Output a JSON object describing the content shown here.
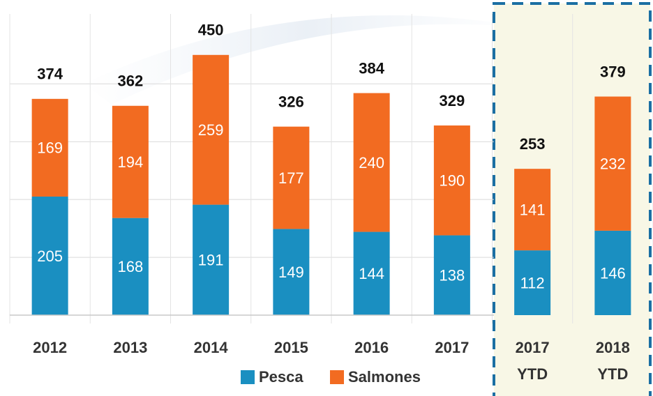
{
  "chart_data": {
    "type": "stacked_bar",
    "categories": [
      "2012",
      "2013",
      "2014",
      "2015",
      "2016",
      "2017",
      "2017 YTD",
      "2018 YTD"
    ],
    "series": [
      {
        "name": "Pesca",
        "color": "#1a8fc1",
        "values": [
          205,
          168,
          191,
          149,
          144,
          138,
          112,
          146
        ]
      },
      {
        "name": "Salmones",
        "color": "#f26b21",
        "values": [
          169,
          194,
          259,
          177,
          240,
          190,
          141,
          232
        ]
      }
    ],
    "totals": [
      374,
      362,
      450,
      326,
      384,
      329,
      253,
      379
    ],
    "ylim": [
      0,
      545
    ],
    "yticks": [
      0,
      100,
      200,
      300,
      400
    ],
    "grid": true,
    "legend": "bottom"
  }
}
